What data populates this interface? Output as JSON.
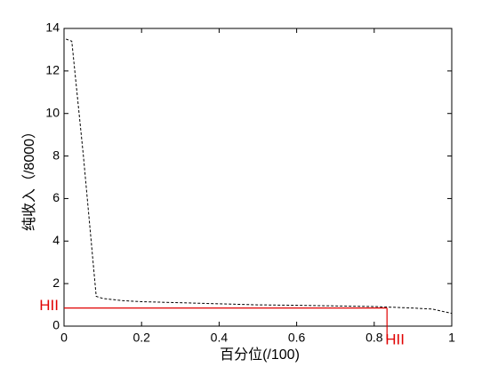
{
  "chart_data": {
    "type": "line",
    "xlabel": "百分位(/100)",
    "ylabel": "纯收入（/8000）",
    "xlim": [
      0,
      1
    ],
    "xticks": [
      0,
      0.2,
      0.4,
      0.6,
      0.8,
      1
    ],
    "ylim": [
      0,
      14
    ],
    "yticks": [
      0,
      2,
      4,
      6,
      8,
      10,
      12,
      14
    ],
    "grid": false,
    "series": [
      {
        "color": "#000000",
        "dash": true,
        "x": [
          0.005,
          0.02,
          0.05,
          0.083,
          0.1,
          0.15,
          0.2,
          0.3,
          0.4,
          0.5,
          0.6,
          0.7,
          0.8,
          0.9,
          0.95,
          1.0
        ],
        "values": [
          13.5,
          13.4,
          8.0,
          1.4,
          1.3,
          1.2,
          1.15,
          1.1,
          1.05,
          1.0,
          0.98,
          0.95,
          0.92,
          0.85,
          0.8,
          0.6
        ]
      }
    ],
    "reference_color": "#e00000",
    "hline": {
      "y": 0.85,
      "x_end": 0.833,
      "label": "HII"
    },
    "vline": {
      "x": 0.833,
      "y_end": 0.85,
      "label": "HII"
    }
  }
}
